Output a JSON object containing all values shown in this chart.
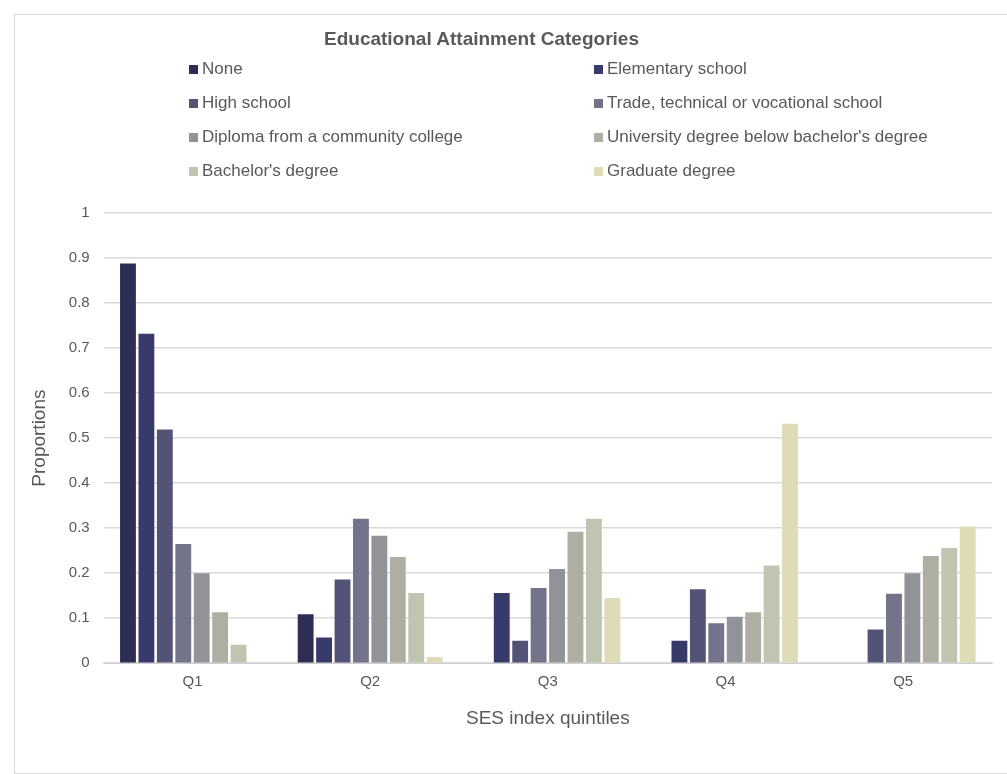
{
  "chart_data": {
    "type": "bar",
    "legend_title": "Educational Attainment Categories",
    "xlabel": "SES index quintiles",
    "ylabel": "Proportions",
    "categories": [
      "Q1",
      "Q2",
      "Q3",
      "Q4",
      "Q5"
    ],
    "series": [
      {
        "name": "None",
        "color": "#2e2e55",
        "values": [
          0.888,
          0.109,
          null,
          null,
          null
        ]
      },
      {
        "name": "Elementary school",
        "color": "#383a6c",
        "values": [
          0.732,
          0.057,
          0.156,
          0.05,
          null
        ]
      },
      {
        "name": "High school",
        "color": "#535378",
        "values": [
          0.519,
          0.186,
          0.05,
          0.164,
          0.075
        ]
      },
      {
        "name": "Trade, technical or vocational school",
        "color": "#737389",
        "values": [
          0.265,
          0.321,
          0.167,
          0.089,
          0.154
        ]
      },
      {
        "name": "Diploma from a community college",
        "color": "#929399",
        "values": [
          0.2,
          0.283,
          0.209,
          0.103,
          0.2
        ]
      },
      {
        "name": "University degree below bachelor's degree",
        "color": "#aeaea2",
        "values": [
          0.113,
          0.236,
          0.292,
          0.113,
          0.238
        ]
      },
      {
        "name": "Bachelor's degree",
        "color": "#c2c4b2",
        "values": [
          0.041,
          0.156,
          0.321,
          0.217,
          0.256
        ]
      },
      {
        "name": "Graduate degree",
        "color": "#dedcb7",
        "values": [
          null,
          0.014,
          0.145,
          0.532,
          0.303
        ]
      }
    ],
    "ylim": [
      0,
      1
    ],
    "yticks": [
      0,
      0.1,
      0.2,
      0.3,
      0.4,
      0.5,
      0.6,
      0.7,
      0.8,
      0.9,
      1
    ],
    "grid": "y",
    "legend": "top"
  }
}
